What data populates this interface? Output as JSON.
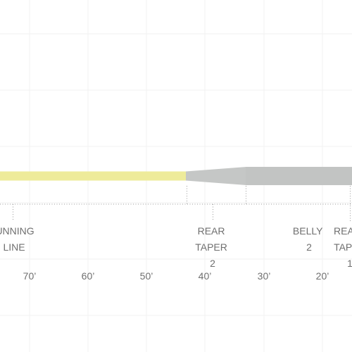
{
  "colors": {
    "running_line": "#eeeb9a",
    "taper": "#c5c7c6",
    "belly": "#c2c4c3",
    "grid": "#f2f2f2",
    "text": "#6f6f6f",
    "guide": "#9a9a9a"
  },
  "segments": [
    {
      "id": "running-line",
      "lines": [
        "UNNING",
        "LINE"
      ]
    },
    {
      "id": "rear-taper-2",
      "lines": [
        "REAR",
        "TAPER",
        "2"
      ]
    },
    {
      "id": "belly-2",
      "lines": [
        "BELLY",
        "2"
      ]
    },
    {
      "id": "rear-taper-1",
      "lines": [
        "REA",
        "TAP",
        "1"
      ]
    }
  ],
  "scale": {
    "ticks": [
      "70’",
      "60’",
      "50’",
      "40’",
      "30’",
      "20’"
    ]
  }
}
